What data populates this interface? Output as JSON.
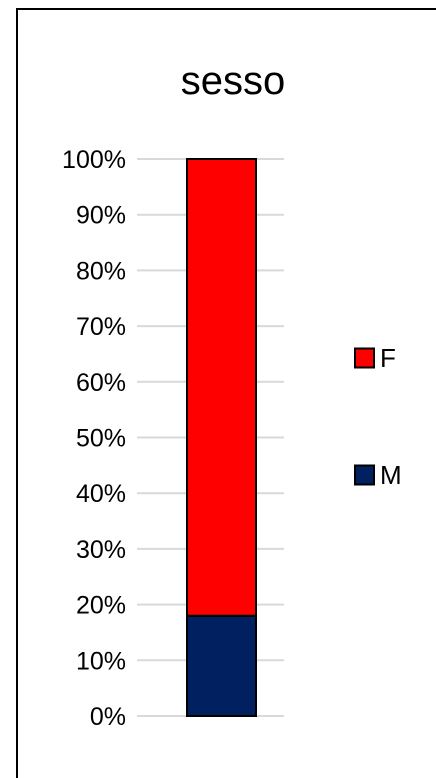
{
  "chart_data": {
    "type": "bar",
    "stacked": true,
    "title": "sesso",
    "xlabel": "",
    "ylabel": "",
    "categories": [
      ""
    ],
    "series": [
      {
        "name": "M",
        "values": [
          18
        ],
        "color": "#002060"
      },
      {
        "name": "F",
        "values": [
          82
        ],
        "color": "#ff0000"
      }
    ],
    "ylim": [
      0,
      100
    ],
    "y_ticks": [
      "0%",
      "10%",
      "20%",
      "30%",
      "40%",
      "50%",
      "60%",
      "70%",
      "80%",
      "90%",
      "100%"
    ],
    "y_tick_values": [
      0,
      10,
      20,
      30,
      40,
      50,
      60,
      70,
      80,
      90,
      100
    ],
    "grid": true,
    "legend_position": "right",
    "legend_order": [
      "F",
      "M"
    ]
  }
}
